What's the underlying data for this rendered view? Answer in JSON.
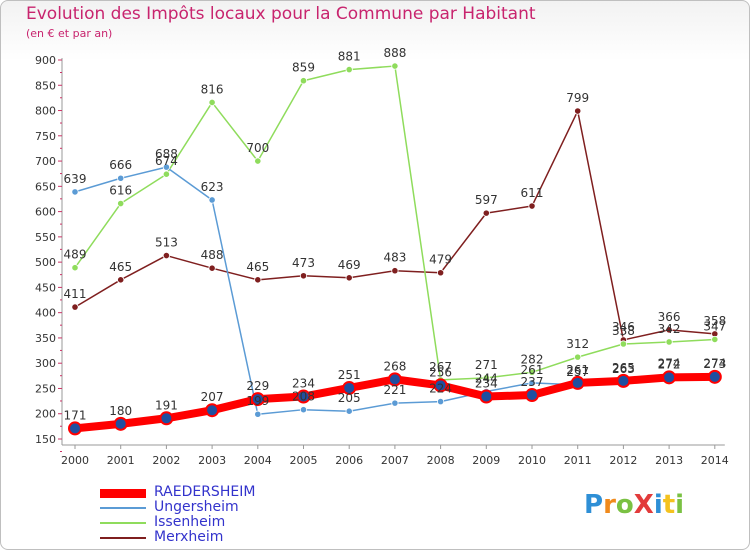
{
  "header": {
    "title": "Evolution des Impôts locaux pour la Commune par Habitant",
    "subtitle": "(en € et par an)"
  },
  "logo": {
    "text": "ProXiti",
    "letters": [
      "P",
      "r",
      "o",
      "X",
      "i",
      "t",
      "i"
    ]
  },
  "colors": {
    "title": "#c8246e",
    "legend_text": "#3333cc",
    "axis": "#888888"
  },
  "chart_data": {
    "type": "line",
    "x": [
      "2000",
      "2001",
      "2002",
      "2003",
      "2004",
      "2005",
      "2006",
      "2007",
      "2008",
      "2009",
      "2010",
      "2011",
      "2012",
      "2013",
      "2014"
    ],
    "ylim": [
      150,
      900
    ],
    "yticks": [
      "150",
      "200",
      "250",
      "300",
      "350",
      "400",
      "450",
      "500",
      "550",
      "600",
      "650",
      "700",
      "750",
      "800",
      "850",
      "900"
    ],
    "grid": false,
    "legend_position": "bottom-left",
    "series": [
      {
        "name": "RAEDERSHEIM",
        "color": "#ff0000",
        "values": [
          171,
          180,
          191,
          207,
          229,
          234,
          251,
          268,
          256,
          234,
          237,
          261,
          265,
          272,
          273
        ],
        "labels": [
          "171",
          "180",
          "191",
          "207",
          "229",
          "234",
          "251",
          "268",
          "256",
          "234",
          "237",
          "261",
          "265",
          "272",
          "273"
        ]
      },
      {
        "name": "Ungersheim",
        "color": "#5b9bd5",
        "values": [
          639,
          666,
          688,
          623,
          199,
          208,
          205,
          221,
          224,
          244,
          261,
          257,
          263,
          274,
          274
        ],
        "labels": [
          "639",
          "666",
          "688",
          "623",
          "199",
          "208",
          "205",
          "221",
          "224",
          "244",
          "261",
          "257",
          "263",
          "274",
          "274"
        ]
      },
      {
        "name": "Issenheim",
        "color": "#8fdc5c",
        "values": [
          489,
          616,
          674,
          816,
          700,
          859,
          881,
          888,
          267,
          271,
          282,
          312,
          338,
          342,
          347
        ],
        "labels": [
          "489",
          "616",
          "674",
          "816",
          "700",
          "859",
          "881",
          "888",
          "267",
          "271",
          "282",
          "312",
          "338",
          "342",
          "347"
        ]
      },
      {
        "name": "Merxheim",
        "color": "#7f1f1f",
        "values": [
          411,
          465,
          513,
          488,
          465,
          473,
          469,
          483,
          479,
          597,
          611,
          799,
          346,
          366,
          358
        ],
        "labels": [
          "411",
          "465",
          "513",
          "488",
          "465",
          "473",
          "469",
          "483",
          "479",
          "597",
          "611",
          "799",
          "346",
          "366",
          "358"
        ]
      }
    ]
  }
}
